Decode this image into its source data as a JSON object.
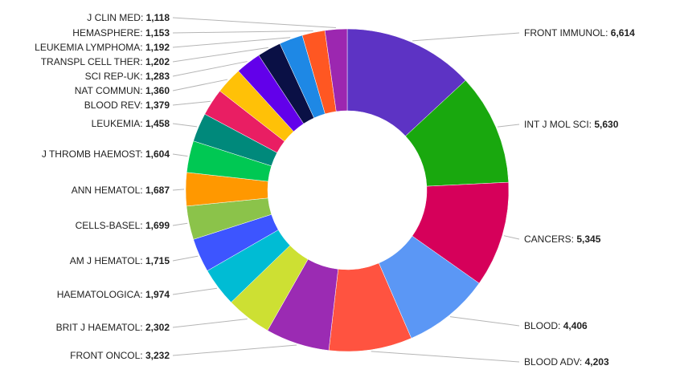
{
  "chart_data": {
    "type": "pie",
    "variant": "donut",
    "title": "",
    "legend": "none",
    "slices": [
      {
        "label": "FRONT IMMUNOL",
        "value": 6614,
        "display": "6,614",
        "color": "#5d33c4"
      },
      {
        "label": "INT J MOL SCI",
        "value": 5630,
        "display": "5,630",
        "color": "#19a80e"
      },
      {
        "label": "CANCERS",
        "value": 5345,
        "display": "5,345",
        "color": "#d6005a"
      },
      {
        "label": "BLOOD",
        "value": 4406,
        "display": "4,406",
        "color": "#5b97f5"
      },
      {
        "label": "BLOOD ADV",
        "value": 4203,
        "display": "4,203",
        "color": "#ff5340"
      },
      {
        "label": "FRONT ONCOL",
        "value": 3232,
        "display": "3,232",
        "color": "#9b2bb3"
      },
      {
        "label": "BRIT J HAEMATOL",
        "value": 2302,
        "display": "2,302",
        "color": "#cde033"
      },
      {
        "label": "HAEMATOLOGICA",
        "value": 1974,
        "display": "1,974",
        "color": "#00bcd4"
      },
      {
        "label": "AM J HEMATOL",
        "value": 1715,
        "display": "1,715",
        "color": "#3d55ff"
      },
      {
        "label": "CELLS-BASEL",
        "value": 1699,
        "display": "1,699",
        "color": "#8bc34a"
      },
      {
        "label": "ANN HEMATOL",
        "value": 1687,
        "display": "1,687",
        "color": "#ff9800"
      },
      {
        "label": "J THROMB HAEMOST",
        "value": 1604,
        "display": "1,604",
        "color": "#00c853"
      },
      {
        "label": "LEUKEMIA",
        "value": 1458,
        "display": "1,458",
        "color": "#00897b"
      },
      {
        "label": "BLOOD REV",
        "value": 1379,
        "display": "1,379",
        "color": "#e91e63"
      },
      {
        "label": "NAT COMMUN",
        "value": 1360,
        "display": "1,360",
        "color": "#ffc107"
      },
      {
        "label": "SCI REP-UK",
        "value": 1283,
        "display": "1,283",
        "color": "#6200ea"
      },
      {
        "label": "TRANSPL CELL THER",
        "value": 1202,
        "display": "1,202",
        "color": "#0a1045"
      },
      {
        "label": "LEUKEMIA LYMPHOMA",
        "value": 1192,
        "display": "1,192",
        "color": "#1e88e5"
      },
      {
        "label": "HEMASPHERE",
        "value": 1153,
        "display": "1,153",
        "color": "#ff5722"
      },
      {
        "label": "J CLIN MED",
        "value": 1118,
        "display": "1,118",
        "color": "#9c27b0"
      }
    ]
  }
}
